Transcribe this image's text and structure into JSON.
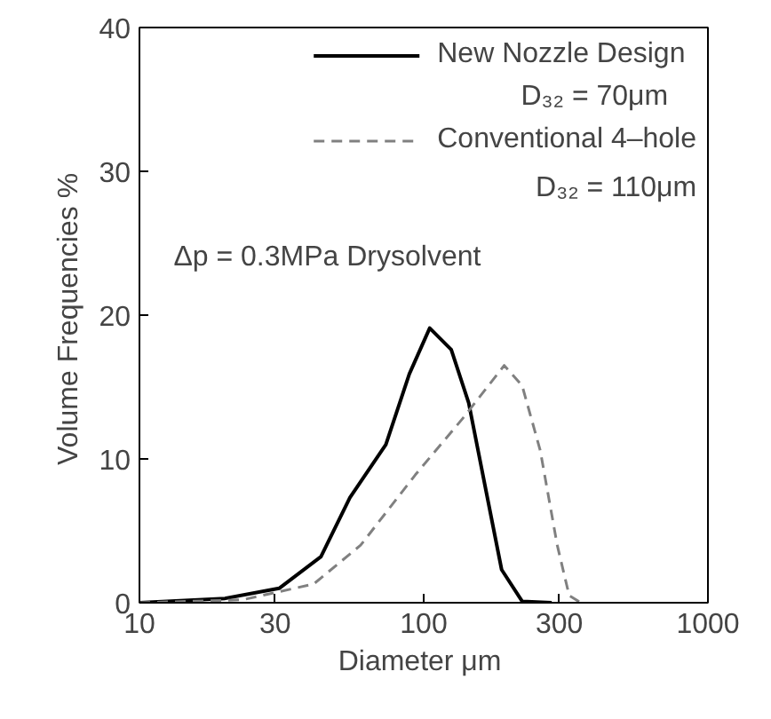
{
  "chart_data": {
    "type": "line",
    "xlabel": "Diameter  μm",
    "ylabel": "Volume Frequencies  %",
    "log": "x",
    "xlim": [
      10,
      1000
    ],
    "xticks": [
      10,
      30,
      100,
      300,
      1000
    ],
    "ylim": [
      0,
      40
    ],
    "yticks": [
      0,
      10,
      20,
      30,
      40
    ],
    "grid": false,
    "legend": "top right",
    "marker": "none",
    "annotations": [
      "D₃₂ = 70μm",
      "D₃₂ = 110μm",
      "Δp = 0.3MPa   Drysolvent"
    ],
    "series": [
      {
        "name": "New Nozzle Design",
        "color": "#000000",
        "line_style": "solid",
        "x": [
          10,
          20,
          31,
          43.5,
          55,
          73.6,
          89,
          105,
          125,
          144,
          166,
          188,
          222,
          282
        ],
        "values": [
          0,
          0.3,
          1.0,
          3.2,
          7.3,
          11,
          15.9,
          19.1,
          17.6,
          13.9,
          7.7,
          2.3,
          0.1,
          0
        ]
      },
      {
        "name": "Conventional 4–hole",
        "color": "#808080",
        "line_style": "dashed",
        "x": [
          10,
          23,
          41,
          60,
          93.5,
          137,
          192,
          222,
          257,
          295,
          325,
          357
        ],
        "values": [
          0,
          0.2,
          1.3,
          4.0,
          8.9,
          12.8,
          16.5,
          15.1,
          10.6,
          4.0,
          0.5,
          0
        ]
      }
    ]
  }
}
